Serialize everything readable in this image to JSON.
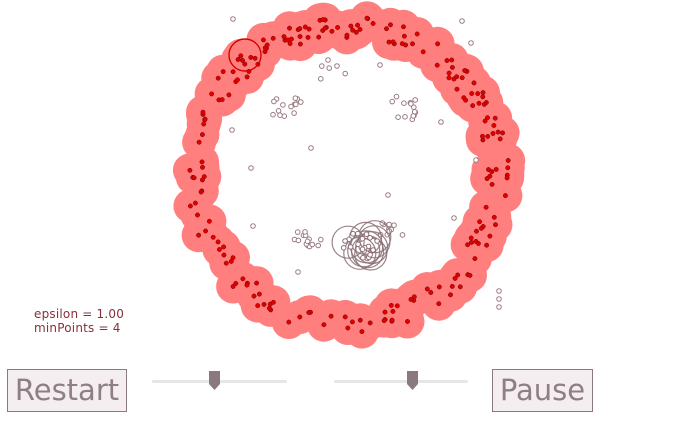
{
  "params": {
    "epsilon_text": "epsilon = 1.00",
    "minpoints_text": "minPoints = 4",
    "epsilon_level": 0.46,
    "minpoints_level": 0.58
  },
  "buttons": {
    "restart_label": "Restart",
    "pause_label": "Pause"
  },
  "colors": {
    "cluster_halo": "#ff7f7f",
    "cluster_point": "#e00000",
    "noise_point": "#9a7b82",
    "scan_circle": "#8a6d73",
    "text": "#8a2f3a",
    "button_text": "#8f7f85",
    "slider_thumb": "#8a7a7f"
  },
  "simulation": {
    "clustered_points": 210,
    "noise_points": 90
  }
}
